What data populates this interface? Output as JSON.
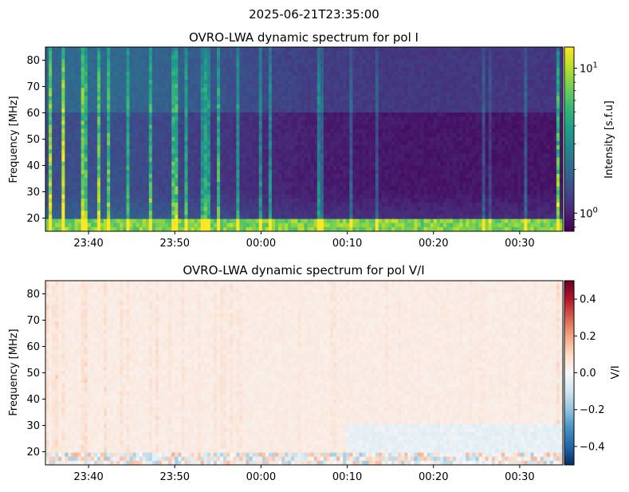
{
  "figure": {
    "suptitle": "2025-06-21T23:35:00"
  },
  "chart_data": [
    {
      "type": "heatmap",
      "title": "OVRO-LWA dynamic spectrum for pol I",
      "xlabel": "",
      "ylabel": "Frequency [MHz]",
      "x_ticks": [
        "23:40",
        "23:50",
        "00:00",
        "00:10",
        "00:20",
        "00:30"
      ],
      "x_tick_minutes": [
        5,
        15,
        25,
        35,
        45,
        55
      ],
      "x_range_minutes": [
        0,
        60
      ],
      "y_ticks": [
        20,
        30,
        40,
        50,
        60,
        70,
        80
      ],
      "ylim": [
        15,
        85
      ],
      "colormap": "viridis",
      "colorbar": {
        "label": "Intensity [s.f.u]",
        "scale": "log",
        "range": [
          0.75,
          14
        ],
        "ticks": [
          {
            "value": 1,
            "base": "10",
            "exp": "0"
          },
          {
            "value": 10,
            "base": "10",
            "exp": "1"
          }
        ],
        "colors": [
          "#440154",
          "#482878",
          "#3e4a89",
          "#31688e",
          "#26828e",
          "#1f9e89",
          "#35b779",
          "#6ece58",
          "#b5de2b",
          "#fde725"
        ]
      }
    },
    {
      "type": "heatmap",
      "title": "OVRO-LWA dynamic spectrum for pol V/I",
      "xlabel": "",
      "ylabel": "Frequency [MHz]",
      "x_ticks": [
        "23:40",
        "23:50",
        "00:00",
        "00:10",
        "00:20",
        "00:30"
      ],
      "x_tick_minutes": [
        5,
        15,
        25,
        35,
        45,
        55
      ],
      "x_range_minutes": [
        0,
        60
      ],
      "y_ticks": [
        20,
        30,
        40,
        50,
        60,
        70,
        80
      ],
      "ylim": [
        15,
        85
      ],
      "colormap": "RdBu_r",
      "colorbar": {
        "label": "V/I",
        "scale": "linear",
        "range": [
          -0.5,
          0.5
        ],
        "ticks": [
          {
            "value": 0.4,
            "label": "0.4"
          },
          {
            "value": 0.2,
            "label": "0.2"
          },
          {
            "value": 0.0,
            "label": "0.0"
          },
          {
            "value": -0.2,
            "label": "−0.2"
          },
          {
            "value": -0.4,
            "label": "−0.4"
          }
        ],
        "colors": [
          "#053061",
          "#2166ac",
          "#4393c3",
          "#92c5de",
          "#d1e5f0",
          "#f7f7f7",
          "#fddbc7",
          "#f4a582",
          "#d6604d",
          "#b2182b",
          "#67001f"
        ]
      }
    }
  ]
}
